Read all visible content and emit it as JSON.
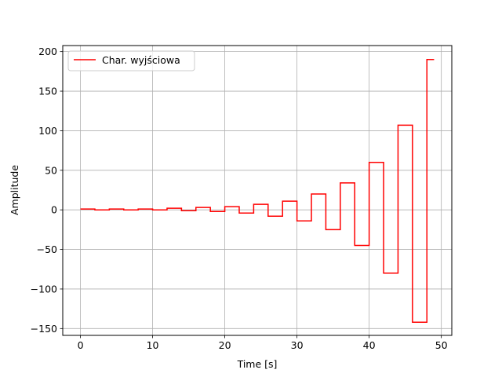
{
  "chart_data": {
    "type": "line",
    "step": "post",
    "xlabel": "Time [s]",
    "ylabel": "Amplitude",
    "xlim": [
      -2.45,
      51.45
    ],
    "ylim": [
      -158.6,
      207.6
    ],
    "xticks": [
      0,
      10,
      20,
      30,
      40,
      50
    ],
    "yticks": [
      -150,
      -100,
      -50,
      0,
      50,
      100,
      150,
      200
    ],
    "ytick_labels": [
      "−150",
      "−100",
      "−50",
      "0",
      "50",
      "100",
      "150",
      "200"
    ],
    "grid": true,
    "legend_position": "upper-left",
    "series": [
      {
        "name": "Char. wyjściowa",
        "color": "#ff0000",
        "x": [
          0,
          2,
          4,
          6,
          8,
          10,
          12,
          14,
          16,
          18,
          20,
          22,
          24,
          26,
          28,
          30,
          32,
          34,
          36,
          38,
          40,
          42,
          44,
          46,
          48,
          49
        ],
        "y": [
          1,
          0,
          1,
          0,
          1,
          0,
          2,
          -1,
          3,
          -2,
          4,
          -4,
          7,
          -8,
          11,
          -14,
          20,
          -25,
          34,
          -45,
          60,
          -80,
          107,
          -142,
          190,
          190
        ]
      }
    ]
  }
}
